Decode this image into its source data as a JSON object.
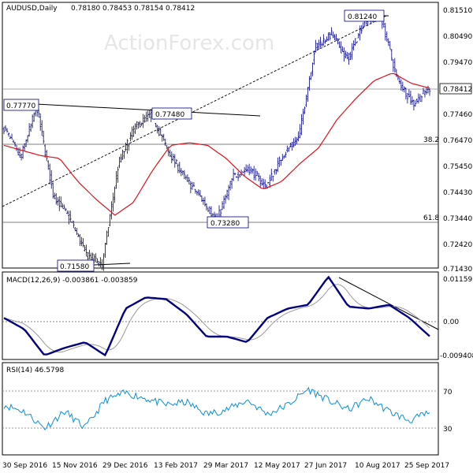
{
  "chart_data": [
    {
      "type": "candlestick",
      "title": "AUDUSD,Daily",
      "ohlc_readout": [
        "0.78180",
        "0.78453",
        "0.78154",
        "0.78412"
      ],
      "watermark": "ActionForex.com",
      "y_ticks": [
        "0.81510",
        "0.80490",
        "0.79470",
        "0.78412",
        "0.77460",
        "0.76470",
        "0.75450",
        "0.74430",
        "0.73440",
        "0.72420",
        "0.71430"
      ],
      "last_price": "0.78412",
      "x_ticks": [
        "30 Sep 2016",
        "15 Nov 2016",
        "29 Dec 2016",
        "13 Feb 2017",
        "29 Mar 2017",
        "12 May 2017",
        "27 Jun 2017",
        "10 Aug 2017",
        "25 Sep 2017"
      ],
      "price_labels": [
        "0.81240",
        "0.77770",
        "0.77480",
        "0.73280",
        "0.71580"
      ],
      "fib_labels": [
        "38.2",
        "61.8"
      ],
      "price_path": [
        0.769,
        0.757,
        0.777,
        0.743,
        0.734,
        0.72,
        0.716,
        0.755,
        0.769,
        0.774,
        0.76,
        0.75,
        0.742,
        0.733,
        0.75,
        0.753,
        0.746,
        0.758,
        0.765,
        0.8,
        0.805,
        0.795,
        0.81,
        0.8124,
        0.788,
        0.778,
        0.7841
      ],
      "ma_path": [
        0.762,
        0.76,
        0.758,
        0.757,
        0.748,
        0.741,
        0.735,
        0.74,
        0.752,
        0.762,
        0.763,
        0.762,
        0.757,
        0.75,
        0.745,
        0.748,
        0.755,
        0.761,
        0.772,
        0.78,
        0.787,
        0.79,
        0.786,
        0.7841
      ]
    },
    {
      "type": "line",
      "title": "MACD(12,26,9) -0.003861 -0.003859",
      "y_ticks": [
        "0.01159",
        "0.00",
        "-0.009408"
      ],
      "macd_path": [
        0.001,
        -0.002,
        -0.009,
        -0.007,
        -0.0055,
        -0.009,
        0.0035,
        0.0065,
        0.006,
        0.002,
        -0.004,
        -0.004,
        -0.0055,
        0.001,
        0.0035,
        0.0045,
        0.012,
        0.004,
        0.0035,
        0.0045,
        0.001,
        -0.0039
      ]
    },
    {
      "type": "line",
      "title": "RSI(14) 46.5798",
      "y_ticks": [
        "70",
        "30"
      ],
      "rsi_path": [
        55,
        48,
        30,
        48,
        30,
        60,
        68,
        62,
        55,
        58,
        45,
        50,
        60,
        45,
        55,
        72,
        60,
        50,
        62,
        48,
        38,
        46.58
      ]
    }
  ]
}
